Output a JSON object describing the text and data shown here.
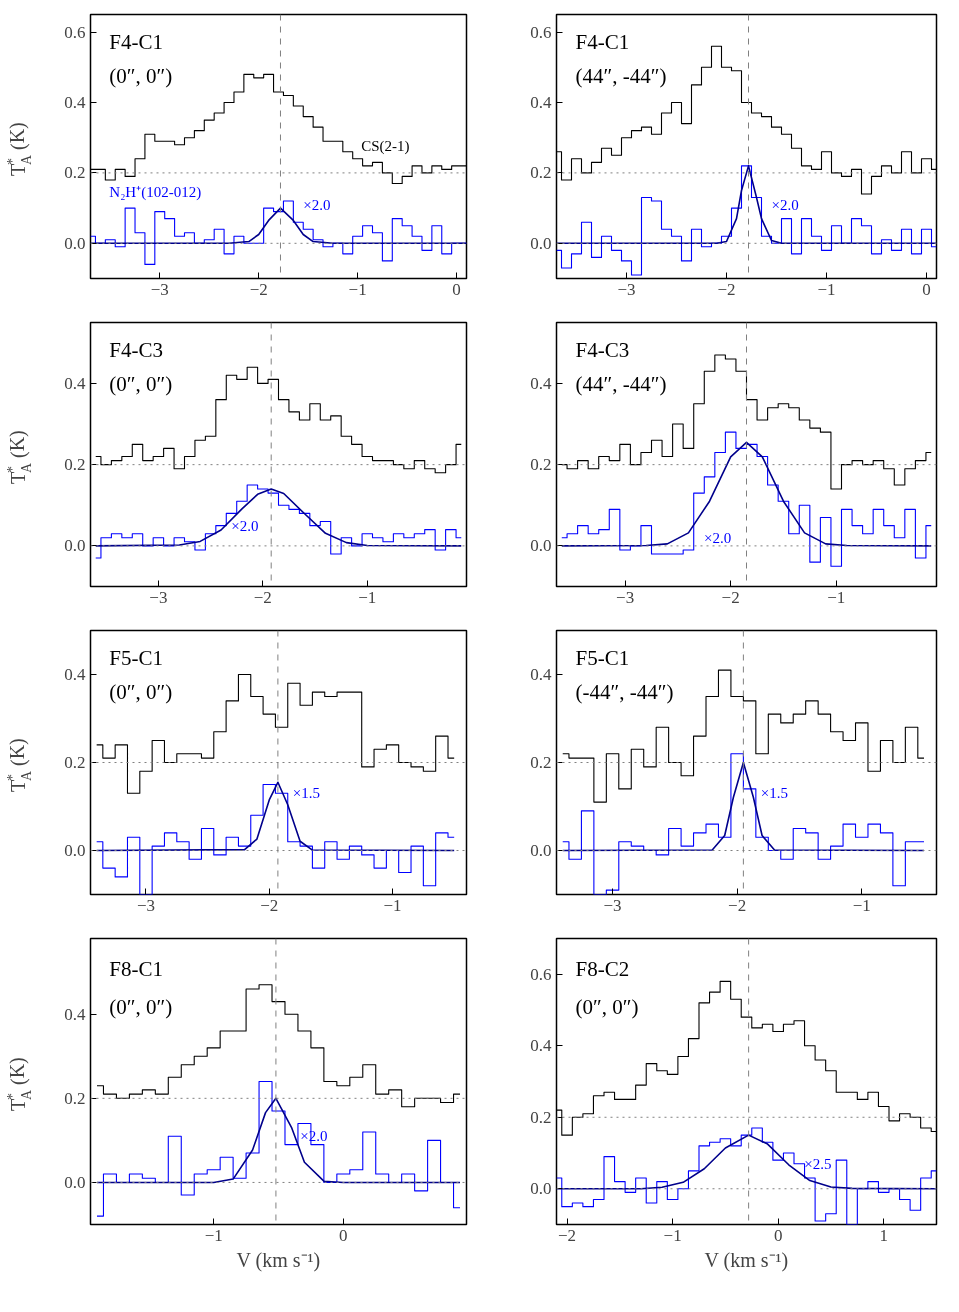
{
  "chart_data": [
    {
      "type": "step",
      "ylabel": "T$_{A}$$^{*}$ (K)",
      "grid": false,
      "xlim": [
        -3.7,
        0.1
      ],
      "ylim": [
        -0.1,
        0.65
      ],
      "xticks": [
        {
          "value": -3,
          "label": "−3"
        },
        {
          "value": -2,
          "label": "−2"
        },
        {
          "value": -1,
          "label": "−1"
        },
        0
      ],
      "yticks": [
        {
          "value": 0,
          "label": "0.0"
        },
        {
          "value": 0.2,
          "label": "0.2"
        },
        {
          "value": 0.4,
          "label": "0.4"
        },
        {
          "value": 0.6,
          "label": "0.6"
        }
      ],
      "annotations": [
        "F4-C1",
        "(0″, 0″)",
        {
          "text": "×2.0",
          "x": -1.6,
          "y": 0.11
        }
      ],
      "ref_lines": [
        {
          "axis": "x",
          "value": -1.78,
          "line_style": "dashed",
          "color": "#808080"
        },
        {
          "axis": "y",
          "value": 0.2,
          "line_style": "dotted",
          "color": "#808080"
        },
        {
          "axis": "y",
          "value": 0,
          "line_style": "dotted",
          "color": "#808080"
        }
      ],
      "x": [
        -3.7,
        -3.6,
        -3.5,
        -3.4,
        -3.3,
        -3.2,
        -3.1,
        -3.0,
        -2.9,
        -2.8,
        -2.7,
        -2.6,
        -2.5,
        -2.4,
        -2.3,
        -2.2,
        -2.1,
        -2.0,
        -1.9,
        -1.8,
        -1.7,
        -1.6,
        -1.5,
        -1.4,
        -1.3,
        -1.2,
        -1.1,
        -1.0,
        -0.9,
        -0.8,
        -0.7,
        -0.6,
        -0.5,
        -0.4,
        -0.3,
        -0.2,
        -0.1,
        0.0,
        0.1
      ],
      "series": [
        {
          "name": "CS(2-1)",
          "color": "#000000",
          "values": [
            0.21,
            0.21,
            0.18,
            0.21,
            0.19,
            0.24,
            0.31,
            0.29,
            0.29,
            0.28,
            0.3,
            0.32,
            0.35,
            0.37,
            0.4,
            0.43,
            0.48,
            0.47,
            0.48,
            0.43,
            0.42,
            0.39,
            0.36,
            0.33,
            0.29,
            0.29,
            0.26,
            0.24,
            0.22,
            0.23,
            0.2,
            0.17,
            0.19,
            0.22,
            0.2,
            0.22,
            0.21,
            0.22,
            0.22
          ]
        },
        {
          "name": "N₂H⁺(102-012)",
          "color": "#0000ff",
          "values": [
            0.02,
            0.0,
            0.01,
            -0.01,
            0.1,
            0.03,
            -0.06,
            0.09,
            0.07,
            0.02,
            0.03,
            0.0,
            0.01,
            0.04,
            -0.03,
            0.02,
            0.0,
            0.0,
            0.1,
            0.09,
            0.12,
            0.06,
            0.04,
            0.01,
            -0.01,
            0.0,
            -0.03,
            0.02,
            0.05,
            0.03,
            -0.05,
            0.07,
            0.05,
            0.02,
            -0.02,
            0.05,
            -0.03,
            0.0,
            0.0
          ]
        },
        {
          "type": "line",
          "color": "#00008b",
          "x": [
            -3.7,
            -2.3,
            -2.1,
            -2.0,
            -1.9,
            -1.78,
            -1.65,
            -1.55,
            -1.45,
            -1.25,
            0.1
          ],
          "values": [
            0,
            0,
            0.005,
            0.025,
            0.065,
            0.1,
            0.065,
            0.025,
            0.005,
            0,
            0
          ]
        }
      ]
    },
    {
      "type": "step",
      "grid": false,
      "xlim": [
        -3.7,
        0.1
      ],
      "ylim": [
        -0.1,
        0.65
      ],
      "xticks": [
        {
          "value": -3,
          "label": "−3"
        },
        {
          "value": -2,
          "label": "−2"
        },
        {
          "value": -1,
          "label": "−1"
        },
        0
      ],
      "yticks": [
        {
          "value": 0,
          "label": "0.0"
        },
        {
          "value": 0.2,
          "label": "0.2"
        },
        {
          "value": 0.4,
          "label": "0.4"
        },
        {
          "value": 0.6,
          "label": "0.6"
        }
      ],
      "annotations": [
        "F4-C1",
        "(44″, -44″)",
        {
          "text": "×2.0",
          "x": -1.6,
          "y": 0.11
        }
      ],
      "ref_lines": [
        {
          "axis": "x",
          "value": -1.78,
          "line_style": "dashed",
          "color": "#808080"
        },
        {
          "axis": "y",
          "value": 0.2,
          "line_style": "dotted",
          "color": "#808080"
        },
        {
          "axis": "y",
          "value": 0,
          "line_style": "dotted",
          "color": "#808080"
        }
      ],
      "x": [
        -3.7,
        -3.6,
        -3.5,
        -3.4,
        -3.3,
        -3.2,
        -3.1,
        -3.0,
        -2.9,
        -2.8,
        -2.7,
        -2.6,
        -2.5,
        -2.4,
        -2.3,
        -2.2,
        -2.1,
        -2.0,
        -1.9,
        -1.8,
        -1.7,
        -1.6,
        -1.5,
        -1.4,
        -1.3,
        -1.2,
        -1.1,
        -1.0,
        -0.9,
        -0.8,
        -0.7,
        -0.6,
        -0.5,
        -0.4,
        -0.3,
        -0.2,
        -0.1,
        0.0,
        0.1
      ],
      "series": [
        {
          "color": "#000000",
          "values": [
            0.26,
            0.18,
            0.24,
            0.2,
            0.23,
            0.27,
            0.25,
            0.3,
            0.32,
            0.33,
            0.31,
            0.37,
            0.4,
            0.34,
            0.45,
            0.5,
            0.56,
            0.5,
            0.49,
            0.4,
            0.37,
            0.36,
            0.33,
            0.31,
            0.27,
            0.22,
            0.21,
            0.26,
            0.2,
            0.19,
            0.21,
            0.14,
            0.19,
            0.22,
            0.2,
            0.26,
            0.2,
            0.24,
            0.21
          ]
        },
        {
          "color": "#0000ff",
          "values": [
            -0.02,
            -0.07,
            -0.03,
            0.06,
            -0.04,
            0.02,
            -0.02,
            -0.05,
            -0.09,
            0.13,
            0.12,
            0.04,
            0.02,
            -0.05,
            0.04,
            -0.01,
            0.0,
            0.02,
            0.1,
            0.22,
            0.13,
            0.02,
            0.0,
            0.07,
            -0.03,
            0.07,
            0.02,
            -0.02,
            0.05,
            0.0,
            0.07,
            0.05,
            -0.03,
            0.01,
            -0.02,
            0.04,
            -0.03,
            0.04,
            -0.01
          ]
        },
        {
          "type": "line",
          "color": "#00008b",
          "x": [
            -3.7,
            -2.1,
            -2.0,
            -1.9,
            -1.85,
            -1.78,
            -1.7,
            -1.65,
            -1.55,
            -1.45,
            0.1
          ],
          "values": [
            0,
            0,
            0.005,
            0.07,
            0.15,
            0.22,
            0.13,
            0.07,
            0.008,
            0,
            0
          ]
        }
      ]
    },
    {
      "type": "step",
      "ylabel": "T$_{A}$$^{*}$ (K)",
      "grid": false,
      "xlim": [
        -3.65,
        -0.05
      ],
      "ylim": [
        -0.1,
        0.55
      ],
      "xticks": [
        {
          "value": -3,
          "label": "−3"
        },
        {
          "value": -2,
          "label": "−2"
        },
        {
          "value": -1,
          "label": "−1"
        }
      ],
      "yticks": [
        {
          "value": 0,
          "label": "0.0"
        },
        {
          "value": 0.2,
          "label": "0.2"
        },
        {
          "value": 0.4,
          "label": "0.4"
        }
      ],
      "annotations": [
        "F4-C3",
        "(0″, 0″)",
        {
          "text": "×2.0",
          "x": -2.35,
          "y": 0.05
        }
      ],
      "ref_lines": [
        {
          "axis": "x",
          "value": -1.92,
          "line_style": "dashed",
          "color": "#808080"
        },
        {
          "axis": "y",
          "value": 0.2,
          "line_style": "dotted",
          "color": "#808080"
        },
        {
          "axis": "y",
          "value": 0,
          "line_style": "dotted",
          "color": "#808080"
        }
      ],
      "x": [
        -3.6,
        -3.5,
        -3.4,
        -3.3,
        -3.2,
        -3.1,
        -3.0,
        -2.9,
        -2.8,
        -2.7,
        -2.6,
        -2.5,
        -2.4,
        -2.3,
        -2.2,
        -2.1,
        -2.0,
        -1.9,
        -1.8,
        -1.7,
        -1.6,
        -1.5,
        -1.4,
        -1.3,
        -1.2,
        -1.1,
        -1.0,
        -0.9,
        -0.8,
        -0.7,
        -0.6,
        -0.5,
        -0.4,
        -0.3,
        -0.2,
        -0.1
      ],
      "series": [
        {
          "color": "#000000",
          "values": [
            0.22,
            0.2,
            0.21,
            0.22,
            0.25,
            0.21,
            0.22,
            0.24,
            0.19,
            0.22,
            0.26,
            0.27,
            0.36,
            0.42,
            0.41,
            0.44,
            0.4,
            0.41,
            0.36,
            0.33,
            0.31,
            0.35,
            0.31,
            0.32,
            0.27,
            0.25,
            0.22,
            0.21,
            0.21,
            0.2,
            0.19,
            0.21,
            0.19,
            0.18,
            0.2,
            0.25
          ]
        },
        {
          "color": "#0000ff",
          "values": [
            -0.03,
            0.02,
            0.03,
            0.02,
            0.03,
            0.0,
            0.02,
            0.0,
            0.02,
            0.01,
            -0.01,
            0.03,
            0.05,
            0.08,
            0.11,
            0.15,
            0.14,
            0.13,
            0.1,
            0.09,
            0.08,
            0.05,
            0.06,
            -0.02,
            0.02,
            0.0,
            0.03,
            0.02,
            0.01,
            0.03,
            0.02,
            0.03,
            0.04,
            -0.01,
            0.04,
            0.02
          ]
        },
        {
          "type": "line",
          "color": "#00008b",
          "x": [
            -3.6,
            -2.8,
            -2.6,
            -2.4,
            -2.2,
            -2.05,
            -1.92,
            -1.8,
            -1.6,
            -1.4,
            -1.2,
            -1.0,
            -0.1
          ],
          "values": [
            0,
            0.002,
            0.011,
            0.039,
            0.091,
            0.127,
            0.14,
            0.129,
            0.079,
            0.031,
            0.008,
            0.001,
            0
          ]
        }
      ]
    },
    {
      "type": "step",
      "grid": false,
      "xlim": [
        -3.65,
        -0.05
      ],
      "ylim": [
        -0.1,
        0.55
      ],
      "xticks": [
        {
          "value": -3,
          "label": "−3"
        },
        {
          "value": -2,
          "label": "−2"
        },
        {
          "value": -1,
          "label": "−1"
        }
      ],
      "yticks": [
        {
          "value": 0,
          "label": "0.0"
        },
        {
          "value": 0.2,
          "label": "0.2"
        },
        {
          "value": 0.4,
          "label": "0.4"
        }
      ],
      "annotations": [
        "F4-C3",
        "(44″, -44″)",
        {
          "text": "×2.0",
          "x": -2.3,
          "y": 0.02
        }
      ],
      "ref_lines": [
        {
          "axis": "x",
          "value": -1.85,
          "line_style": "dashed",
          "color": "#808080"
        },
        {
          "axis": "y",
          "value": 0.2,
          "line_style": "dotted",
          "color": "#808080"
        },
        {
          "axis": "y",
          "value": 0,
          "line_style": "dotted",
          "color": "#808080"
        }
      ],
      "x": [
        -3.6,
        -3.5,
        -3.4,
        -3.3,
        -3.2,
        -3.1,
        -3.0,
        -2.9,
        -2.8,
        -2.7,
        -2.6,
        -2.5,
        -2.4,
        -2.3,
        -2.2,
        -2.1,
        -2.0,
        -1.9,
        -1.8,
        -1.7,
        -1.6,
        -1.5,
        -1.4,
        -1.3,
        -1.2,
        -1.1,
        -1.0,
        -0.9,
        -0.8,
        -0.7,
        -0.6,
        -0.5,
        -0.4,
        -0.3,
        -0.2,
        -0.1
      ],
      "series": [
        {
          "color": "#000000",
          "values": [
            0.2,
            0.19,
            0.21,
            0.19,
            0.22,
            0.21,
            0.25,
            0.2,
            0.23,
            0.26,
            0.22,
            0.3,
            0.24,
            0.35,
            0.43,
            0.47,
            0.46,
            0.43,
            0.36,
            0.31,
            0.34,
            0.35,
            0.34,
            0.31,
            0.29,
            0.28,
            0.14,
            0.2,
            0.21,
            0.2,
            0.21,
            0.19,
            0.15,
            0.19,
            0.21,
            0.23
          ]
        },
        {
          "color": "#0000ff",
          "values": [
            0.02,
            0.03,
            0.05,
            0.03,
            0.04,
            0.09,
            -0.01,
            0.0,
            0.05,
            -0.02,
            -0.02,
            -0.02,
            -0.01,
            0.13,
            0.17,
            0.23,
            0.28,
            0.24,
            0.25,
            0.22,
            0.15,
            0.11,
            0.03,
            0.1,
            -0.04,
            0.07,
            -0.05,
            0.09,
            0.05,
            0.03,
            0.09,
            0.05,
            0.02,
            0.09,
            -0.03,
            0.05
          ]
        },
        {
          "type": "line",
          "color": "#00008b",
          "x": [
            -3.6,
            -2.8,
            -2.6,
            -2.4,
            -2.2,
            -2.0,
            -1.85,
            -1.7,
            -1.5,
            -1.3,
            -1.1,
            -0.9,
            -0.1
          ],
          "values": [
            0,
            0.001,
            0.005,
            0.032,
            0.11,
            0.219,
            0.255,
            0.219,
            0.11,
            0.032,
            0.005,
            0.001,
            0
          ]
        }
      ]
    },
    {
      "type": "step",
      "ylabel": "T$_{A}$$^{*}$ (K)",
      "grid": false,
      "xlim": [
        -3.45,
        -0.4
      ],
      "ylim": [
        -0.1,
        0.5
      ],
      "xticks": [
        {
          "value": -3,
          "label": "−3"
        },
        {
          "value": -2,
          "label": "−2"
        },
        {
          "value": -1,
          "label": "−1"
        }
      ],
      "yticks": [
        {
          "value": 0,
          "label": "0.0"
        },
        {
          "value": 0.2,
          "label": "0.2"
        },
        {
          "value": 0.4,
          "label": "0.4"
        }
      ],
      "annotations": [
        "F5-C1",
        "(0″, 0″)",
        {
          "text": "×1.5",
          "x": -1.85,
          "y": 0.13
        }
      ],
      "ref_lines": [
        {
          "axis": "x",
          "value": -1.93,
          "line_style": "dashed",
          "color": "#808080"
        },
        {
          "axis": "y",
          "value": 0.2,
          "line_style": "dotted",
          "color": "#808080"
        },
        {
          "axis": "y",
          "value": 0,
          "line_style": "dotted",
          "color": "#808080"
        }
      ],
      "x": [
        -3.4,
        -3.3,
        -3.2,
        -3.1,
        -3.0,
        -2.9,
        -2.8,
        -2.7,
        -2.6,
        -2.5,
        -2.4,
        -2.3,
        -2.2,
        -2.1,
        -2.0,
        -1.9,
        -1.8,
        -1.7,
        -1.6,
        -1.5,
        -1.4,
        -1.3,
        -1.2,
        -1.1,
        -1.0,
        -0.9,
        -0.8,
        -0.7,
        -0.6,
        -0.5
      ],
      "series": [
        {
          "color": "#000000",
          "values": [
            0.24,
            0.21,
            0.24,
            0.13,
            0.18,
            0.25,
            0.2,
            0.22,
            0.22,
            0.21,
            0.27,
            0.34,
            0.4,
            0.35,
            0.31,
            0.28,
            0.38,
            0.33,
            0.36,
            0.35,
            0.36,
            0.36,
            0.19,
            0.23,
            0.24,
            0.2,
            0.19,
            0.18,
            0.26,
            0.21
          ]
        },
        {
          "color": "#0000ff",
          "values": [
            0.02,
            -0.04,
            -0.06,
            0.03,
            -0.1,
            0.01,
            0.04,
            0.02,
            -0.02,
            0.05,
            -0.01,
            0.03,
            0.01,
            0.08,
            0.15,
            0.13,
            0.02,
            0.01,
            -0.04,
            0.02,
            -0.02,
            0.01,
            -0.01,
            -0.04,
            0.0,
            -0.05,
            0.01,
            -0.08,
            0.04,
            0.03
          ]
        },
        {
          "type": "line",
          "color": "#00008b",
          "x": [
            -3.4,
            -2.2,
            -2.1,
            -2.0,
            -1.93,
            -1.85,
            -1.75,
            -1.65,
            -0.5
          ],
          "values": [
            0,
            0.002,
            0.026,
            0.115,
            0.155,
            0.104,
            0.021,
            0.001,
            0
          ]
        }
      ]
    },
    {
      "type": "step",
      "grid": false,
      "xlim": [
        -3.45,
        -0.4
      ],
      "ylim": [
        -0.1,
        0.5
      ],
      "xticks": [
        {
          "value": -3,
          "label": "−3"
        },
        {
          "value": -2,
          "label": "−2"
        },
        {
          "value": -1,
          "label": "−1"
        }
      ],
      "yticks": [
        {
          "value": 0,
          "label": "0.0"
        },
        {
          "value": 0.2,
          "label": "0.2"
        },
        {
          "value": 0.4,
          "label": "0.4"
        }
      ],
      "annotations": [
        "F5-C1",
        "(-44″, -44″)",
        {
          "text": "×1.5",
          "x": -1.85,
          "y": 0.13
        }
      ],
      "ref_lines": [
        {
          "axis": "x",
          "value": -1.95,
          "line_style": "dashed",
          "color": "#808080"
        },
        {
          "axis": "y",
          "value": 0.2,
          "line_style": "dotted",
          "color": "#808080"
        },
        {
          "axis": "y",
          "value": 0,
          "line_style": "dotted",
          "color": "#808080"
        }
      ],
      "x": [
        -3.4,
        -3.3,
        -3.2,
        -3.1,
        -3.0,
        -2.9,
        -2.8,
        -2.7,
        -2.6,
        -2.5,
        -2.4,
        -2.3,
        -2.2,
        -2.1,
        -2.0,
        -1.9,
        -1.8,
        -1.7,
        -1.6,
        -1.5,
        -1.4,
        -1.3,
        -1.2,
        -1.1,
        -1.0,
        -0.9,
        -0.8,
        -0.7,
        -0.6,
        -0.5
      ],
      "series": [
        {
          "color": "#000000",
          "values": [
            0.22,
            0.21,
            0.21,
            0.11,
            0.22,
            0.14,
            0.23,
            0.19,
            0.28,
            0.2,
            0.17,
            0.26,
            0.35,
            0.41,
            0.35,
            0.34,
            0.22,
            0.31,
            0.29,
            0.31,
            0.34,
            0.31,
            0.27,
            0.25,
            0.29,
            0.18,
            0.25,
            0.2,
            0.28,
            0.21
          ]
        },
        {
          "color": "#0000ff",
          "values": [
            0.02,
            -0.02,
            0.09,
            -0.1,
            -0.09,
            0.02,
            0.01,
            0.0,
            -0.01,
            0.05,
            0.01,
            0.04,
            0.06,
            0.03,
            0.22,
            0.14,
            0.03,
            0.0,
            -0.02,
            0.05,
            0.04,
            -0.02,
            0.01,
            0.06,
            0.03,
            0.06,
            0.04,
            -0.08,
            0.02,
            0.02
          ]
        },
        {
          "type": "line",
          "color": "#00008b",
          "x": [
            -3.4,
            -2.2,
            -2.1,
            -2.03,
            -1.95,
            -1.87,
            -1.8,
            -1.7,
            -0.5
          ],
          "values": [
            0,
            0.001,
            0.034,
            0.121,
            0.2,
            0.121,
            0.034,
            0.001,
            0
          ]
        }
      ]
    },
    {
      "type": "step",
      "ylabel": "T$_{A}$$^{*}$ (K)",
      "xlabel": "V (km s⁻¹)",
      "grid": false,
      "xlim": [
        -1.95,
        0.95
      ],
      "ylim": [
        -0.1,
        0.58
      ],
      "xticks": [
        {
          "value": -1,
          "label": "−1"
        },
        0
      ],
      "yticks": [
        {
          "value": 0,
          "label": "0.0"
        },
        {
          "value": 0.2,
          "label": "0.2"
        },
        {
          "value": 0.4,
          "label": "0.4"
        }
      ],
      "annotations": [
        "F8-C1",
        "(0″, 0″)",
        {
          "text": "×2.0",
          "x": -0.37,
          "y": 0.11
        }
      ],
      "ref_lines": [
        {
          "axis": "x",
          "value": -0.52,
          "line_style": "dashed",
          "color": "#808080"
        },
        {
          "axis": "y",
          "value": 0.2,
          "line_style": "dotted",
          "color": "#808080"
        },
        {
          "axis": "y",
          "value": 0,
          "line_style": "dotted",
          "color": "#808080"
        }
      ],
      "x": [
        -1.9,
        -1.8,
        -1.7,
        -1.6,
        -1.5,
        -1.4,
        -1.3,
        -1.2,
        -1.1,
        -1.0,
        -0.9,
        -0.8,
        -0.7,
        -0.6,
        -0.5,
        -0.4,
        -0.3,
        -0.2,
        -0.1,
        0.0,
        0.1,
        0.2,
        0.3,
        0.4,
        0.5,
        0.6,
        0.7,
        0.8,
        0.9
      ],
      "series": [
        {
          "color": "#000000",
          "values": [
            0.23,
            0.21,
            0.2,
            0.21,
            0.22,
            0.21,
            0.25,
            0.28,
            0.3,
            0.32,
            0.36,
            0.36,
            0.46,
            0.47,
            0.43,
            0.4,
            0.36,
            0.32,
            0.24,
            0.23,
            0.25,
            0.28,
            0.21,
            0.22,
            0.18,
            0.2,
            0.2,
            0.19,
            0.21
          ]
        },
        {
          "color": "#0000ff",
          "values": [
            -0.08,
            0.02,
            0.0,
            0.02,
            0.01,
            0.0,
            0.11,
            -0.03,
            0.02,
            0.03,
            0.06,
            0.01,
            0.07,
            0.24,
            0.17,
            0.09,
            0.14,
            0.09,
            0.0,
            0.02,
            0.03,
            0.12,
            0.02,
            0.0,
            0.02,
            -0.02,
            0.1,
            0.0,
            -0.06
          ]
        },
        {
          "type": "line",
          "color": "#00008b",
          "x": [
            -1.9,
            -1.0,
            -0.85,
            -0.7,
            -0.6,
            -0.52,
            -0.4,
            -0.3,
            -0.15,
            0.0,
            0.9
          ],
          "values": [
            0,
            0,
            0.008,
            0.077,
            0.166,
            0.2,
            0.131,
            0.048,
            0.003,
            0,
            0
          ]
        }
      ]
    },
    {
      "type": "step",
      "xlabel": "V (km s⁻¹)",
      "grid": false,
      "xlim": [
        -2.1,
        1.5
      ],
      "ylim": [
        -0.1,
        0.7
      ],
      "xticks": [
        {
          "value": -2,
          "label": "−2"
        },
        {
          "value": -1,
          "label": "−1"
        },
        0,
        1
      ],
      "yticks": [
        {
          "value": 0,
          "label": "0.0"
        },
        {
          "value": 0.2,
          "label": "0.2"
        },
        {
          "value": 0.4,
          "label": "0.4"
        },
        {
          "value": 0.6,
          "label": "0.6"
        }
      ],
      "annotations": [
        "F8-C2",
        "(0″, 0″)",
        {
          "text": "×2.5",
          "x": 0.2,
          "y": 0.07
        }
      ],
      "ref_lines": [
        {
          "axis": "x",
          "value": -0.28,
          "line_style": "dashed",
          "color": "#808080"
        },
        {
          "axis": "y",
          "value": 0.2,
          "line_style": "dotted",
          "color": "#808080"
        },
        {
          "axis": "y",
          "value": 0,
          "line_style": "dotted",
          "color": "#808080"
        }
      ],
      "x": [
        -2.1,
        -2.0,
        -1.9,
        -1.8,
        -1.7,
        -1.6,
        -1.5,
        -1.4,
        -1.3,
        -1.2,
        -1.1,
        -1.0,
        -0.9,
        -0.8,
        -0.7,
        -0.6,
        -0.5,
        -0.4,
        -0.3,
        -0.2,
        -0.1,
        0.0,
        0.1,
        0.2,
        0.3,
        0.4,
        0.5,
        0.6,
        0.7,
        0.8,
        0.9,
        1.0,
        1.1,
        1.2,
        1.3,
        1.4,
        1.5
      ],
      "series": [
        {
          "color": "#000000",
          "values": [
            0.22,
            0.15,
            0.2,
            0.21,
            0.26,
            0.27,
            0.25,
            0.25,
            0.29,
            0.35,
            0.33,
            0.32,
            0.37,
            0.42,
            0.52,
            0.55,
            0.58,
            0.53,
            0.48,
            0.45,
            0.46,
            0.44,
            0.46,
            0.47,
            0.4,
            0.36,
            0.33,
            0.27,
            0.27,
            0.25,
            0.27,
            0.23,
            0.19,
            0.21,
            0.2,
            0.17,
            0.16
          ]
        },
        {
          "color": "#0000ff",
          "values": [
            0.03,
            -0.05,
            -0.04,
            -0.05,
            -0.03,
            0.09,
            0.02,
            -0.01,
            0.03,
            -0.04,
            0.02,
            -0.03,
            0.0,
            0.05,
            0.12,
            0.13,
            0.14,
            0.12,
            0.15,
            0.17,
            0.13,
            0.08,
            0.1,
            0.07,
            0.03,
            -0.09,
            -0.07,
            0.08,
            -0.1,
            0.0,
            0.02,
            -0.01,
            0.0,
            -0.03,
            -0.06,
            0.03,
            0.05
          ]
        },
        {
          "type": "line",
          "color": "#00008b",
          "x": [
            -2.1,
            -1.3,
            -1.1,
            -0.9,
            -0.7,
            -0.5,
            -0.28,
            -0.1,
            0.1,
            0.3,
            0.5,
            0.7,
            1.5
          ],
          "values": [
            0,
            0,
            0.004,
            0.018,
            0.056,
            0.114,
            0.15,
            0.125,
            0.067,
            0.023,
            0.005,
            0.001,
            0
          ]
        }
      ]
    }
  ]
}
